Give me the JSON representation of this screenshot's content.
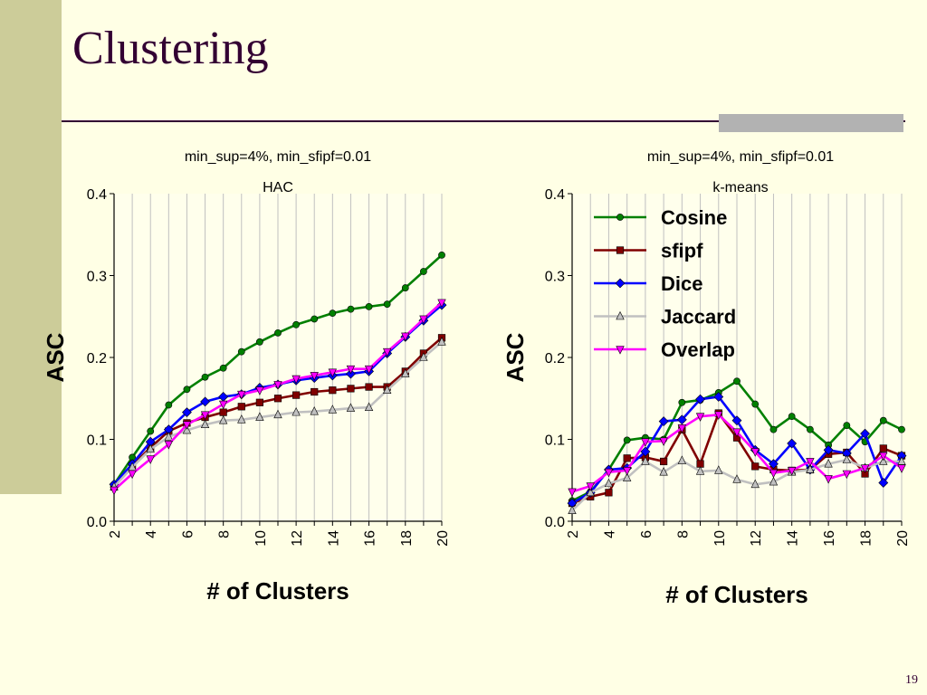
{
  "slide": {
    "title": "Clustering",
    "page_number": "19"
  },
  "colors": {
    "background": "#FFFFE5",
    "sidebar": "#CCCC99",
    "title": "#330033",
    "accent_bar": "#B2B2B2",
    "grid": "#C0C0C0"
  },
  "chart_data": [
    {
      "type": "line",
      "subtitle_1": "min_sup=4%, min_sfipf=0.01",
      "subtitle_2": "HAC",
      "xlabel": "# of Clusters",
      "ylabel": "ASC",
      "xlim": [
        2,
        20
      ],
      "ylim": [
        0,
        0.4
      ],
      "yticks": [
        "0.0",
        "0.1",
        "0.2",
        "0.3",
        "0.4"
      ],
      "xticks": [
        "2",
        "4",
        "6",
        "8",
        "10",
        "12",
        "14",
        "16",
        "18",
        "20"
      ],
      "grid": true,
      "legend": "none",
      "x": [
        2,
        3,
        4,
        5,
        6,
        7,
        8,
        9,
        10,
        11,
        12,
        13,
        14,
        15,
        16,
        17,
        18,
        19,
        20
      ],
      "series": [
        {
          "name": "Cosine",
          "color": "#008000",
          "marker": "circle",
          "values": [
            0.045,
            0.078,
            0.11,
            0.142,
            0.161,
            0.176,
            0.187,
            0.207,
            0.219,
            0.23,
            0.24,
            0.247,
            0.254,
            0.259,
            0.262,
            0.265,
            0.285,
            0.305,
            0.325
          ]
        },
        {
          "name": "sfipf",
          "color": "#800000",
          "marker": "square",
          "values": [
            0.042,
            0.068,
            0.09,
            0.11,
            0.12,
            0.127,
            0.133,
            0.14,
            0.145,
            0.15,
            0.154,
            0.158,
            0.16,
            0.162,
            0.164,
            0.164,
            0.183,
            0.205,
            0.224
          ]
        },
        {
          "name": "Dice",
          "color": "#0000FF",
          "marker": "diamond",
          "values": [
            0.045,
            0.07,
            0.097,
            0.112,
            0.133,
            0.146,
            0.152,
            0.155,
            0.163,
            0.167,
            0.172,
            0.175,
            0.178,
            0.18,
            0.183,
            0.205,
            0.225,
            0.245,
            0.264
          ]
        },
        {
          "name": "Jaccard",
          "color": "#C0C0C0",
          "marker": "triangle-up",
          "values": [
            0.042,
            0.066,
            0.088,
            0.103,
            0.111,
            0.118,
            0.123,
            0.124,
            0.127,
            0.13,
            0.133,
            0.134,
            0.136,
            0.138,
            0.139,
            0.16,
            0.18,
            0.2,
            0.219
          ]
        },
        {
          "name": "Overlap",
          "color": "#FF00FF",
          "marker": "triangle-down",
          "values": [
            0.038,
            0.058,
            0.076,
            0.094,
            0.118,
            0.13,
            0.143,
            0.155,
            0.16,
            0.167,
            0.174,
            0.178,
            0.182,
            0.186,
            0.186,
            0.207,
            0.226,
            0.247,
            0.267
          ]
        }
      ]
    },
    {
      "type": "line",
      "subtitle_1": "min_sup=4%, min_sfipf=0.01",
      "subtitle_2": "k-means",
      "xlabel": "# of Clusters",
      "ylabel": "ASC",
      "xlim": [
        2,
        20
      ],
      "ylim": [
        0,
        0.4
      ],
      "yticks": [
        "0.0",
        "0.1",
        "0.2",
        "0.3",
        "0.4"
      ],
      "xticks": [
        "2",
        "4",
        "6",
        "8",
        "10",
        "12",
        "14",
        "16",
        "18",
        "20"
      ],
      "grid": true,
      "legend": "top-right",
      "x": [
        2,
        3,
        4,
        5,
        6,
        7,
        8,
        9,
        10,
        11,
        12,
        13,
        14,
        15,
        16,
        17,
        18,
        19,
        20
      ],
      "series": [
        {
          "name": "Cosine",
          "color": "#008000",
          "marker": "circle",
          "values": [
            0.025,
            0.036,
            0.063,
            0.099,
            0.102,
            0.1,
            0.145,
            0.148,
            0.157,
            0.171,
            0.143,
            0.112,
            0.128,
            0.112,
            0.093,
            0.117,
            0.097,
            0.123,
            0.112
          ]
        },
        {
          "name": "sfipf",
          "color": "#800000",
          "marker": "square",
          "values": [
            0.022,
            0.03,
            0.035,
            0.077,
            0.078,
            0.073,
            0.112,
            0.07,
            0.132,
            0.102,
            0.067,
            0.063,
            0.062,
            0.063,
            0.082,
            0.084,
            0.058,
            0.089,
            0.08
          ]
        },
        {
          "name": "Dice",
          "color": "#0000FF",
          "marker": "diamond",
          "values": [
            0.022,
            0.035,
            0.063,
            0.065,
            0.085,
            0.122,
            0.124,
            0.149,
            0.152,
            0.123,
            0.087,
            0.07,
            0.095,
            0.063,
            0.087,
            0.083,
            0.107,
            0.047,
            0.08
          ]
        },
        {
          "name": "Jaccard",
          "color": "#C0C0C0",
          "marker": "triangle-up",
          "values": [
            0.013,
            0.035,
            0.046,
            0.053,
            0.073,
            0.06,
            0.074,
            0.061,
            0.062,
            0.051,
            0.045,
            0.048,
            0.06,
            0.063,
            0.07,
            0.075,
            0.065,
            0.073,
            0.073
          ]
        },
        {
          "name": "Overlap",
          "color": "#FF00FF",
          "marker": "triangle-down",
          "values": [
            0.036,
            0.043,
            0.06,
            0.062,
            0.097,
            0.098,
            0.114,
            0.128,
            0.13,
            0.109,
            0.085,
            0.059,
            0.062,
            0.073,
            0.052,
            0.058,
            0.065,
            0.08,
            0.065
          ]
        }
      ]
    }
  ]
}
